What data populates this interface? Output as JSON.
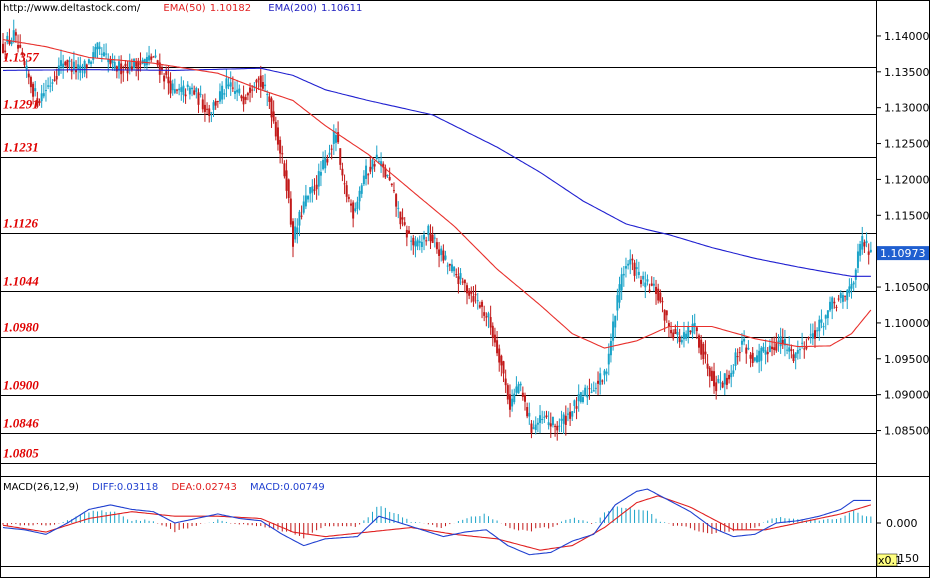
{
  "header": {
    "url": "http://www.deltastock.com/",
    "ema50_label": "EMA(50)",
    "ema50_value": "1.10182",
    "ema200_label": "EMA(200)",
    "ema200_value": "1.10611"
  },
  "macd_header": {
    "label": "MACD(26,12,9)",
    "diff": "DIFF:0.03118",
    "dea": "DEA:0.02743",
    "macd": "MACD:0.00749"
  },
  "colors": {
    "up": "#1aa3c8",
    "down": "#c21a1a",
    "ema50": "#e8302c",
    "ema200": "#1f1fd0",
    "level_text": "#e00000",
    "diff": "#2040d0",
    "dea": "#e02020",
    "price_tag_bg": "#1f5fd0"
  },
  "chart_data": [
    {
      "type": "candlestick",
      "ylim": [
        1.0795,
        1.1425
      ],
      "yticks": [
        "1.14000",
        "1.13500",
        "1.13000",
        "1.12500",
        "1.12000",
        "1.11500",
        "1.11000",
        "1.10500",
        "1.10000",
        "1.09500",
        "1.09000",
        "1.08500"
      ],
      "ytick_values": [
        1.14,
        1.135,
        1.13,
        1.125,
        1.12,
        1.115,
        1.11,
        1.105,
        1.1,
        1.095,
        1.09,
        1.085
      ],
      "current_price": "1.10973",
      "current_price_value": 1.10973,
      "levels": [
        {
          "label": "1.1357",
          "value": 1.1357
        },
        {
          "label": "1.1291",
          "value": 1.1291
        },
        {
          "label": "1.1231",
          "value": 1.1231
        },
        {
          "label": "1.1126",
          "value": 1.1126
        },
        {
          "label": "1.1044",
          "value": 1.1044
        },
        {
          "label": "1.0980",
          "value": 1.098
        },
        {
          "label": "1.0900",
          "value": 1.09
        },
        {
          "label": "1.0846",
          "value": 1.0846
        },
        {
          "label": "1.0805",
          "value": 1.0805
        }
      ],
      "price_anchors": [
        [
          0,
          1.1385
        ],
        [
          5,
          1.14
        ],
        [
          10,
          1.1355
        ],
        [
          16,
          1.131
        ],
        [
          22,
          1.1335
        ],
        [
          28,
          1.1365
        ],
        [
          36,
          1.135
        ],
        [
          44,
          1.138
        ],
        [
          52,
          1.1355
        ],
        [
          62,
          1.136
        ],
        [
          70,
          1.137
        ],
        [
          80,
          1.132
        ],
        [
          88,
          1.1325
        ],
        [
          96,
          1.1295
        ],
        [
          104,
          1.133
        ],
        [
          112,
          1.1315
        ],
        [
          118,
          1.1345
        ],
        [
          124,
          1.131
        ],
        [
          128,
          1.1255
        ],
        [
          132,
          1.1195
        ],
        [
          135,
          1.1115
        ],
        [
          140,
          1.1165
        ],
        [
          146,
          1.1195
        ],
        [
          150,
          1.1225
        ],
        [
          155,
          1.1265
        ],
        [
          158,
          1.1195
        ],
        [
          163,
          1.1155
        ],
        [
          168,
          1.1205
        ],
        [
          174,
          1.123
        ],
        [
          180,
          1.1195
        ],
        [
          186,
          1.1135
        ],
        [
          192,
          1.1105
        ],
        [
          198,
          1.1125
        ],
        [
          206,
          1.1085
        ],
        [
          214,
          1.1055
        ],
        [
          220,
          1.1035
        ],
        [
          226,
          1.1005
        ],
        [
          231,
          1.0955
        ],
        [
          236,
          1.0885
        ],
        [
          240,
          1.0915
        ],
        [
          246,
          1.0855
        ],
        [
          252,
          1.0865
        ],
        [
          258,
          1.0855
        ],
        [
          264,
          1.0875
        ],
        [
          272,
          1.0905
        ],
        [
          280,
          1.0925
        ],
        [
          284,
          1.0995
        ],
        [
          288,
          1.107
        ],
        [
          292,
          1.1085
        ],
        [
          298,
          1.1055
        ],
        [
          304,
          1.1045
        ],
        [
          310,
          1.0995
        ],
        [
          316,
          1.0975
        ],
        [
          322,
          1.0995
        ],
        [
          326,
          1.0955
        ],
        [
          332,
          1.0915
        ],
        [
          338,
          1.0925
        ],
        [
          344,
          1.0975
        ],
        [
          350,
          1.0945
        ],
        [
          356,
          1.0965
        ],
        [
          362,
          1.0975
        ],
        [
          368,
          1.0955
        ],
        [
          374,
          1.0975
        ],
        [
          380,
          1.0995
        ],
        [
          386,
          1.1025
        ],
        [
          392,
          1.1035
        ],
        [
          396,
          1.1065
        ],
        [
          400,
          1.1115
        ],
        [
          404,
          1.1095
        ]
      ],
      "ema50_anchors": [
        [
          0,
          1.1395
        ],
        [
          20,
          1.1385
        ],
        [
          40,
          1.137
        ],
        [
          70,
          1.1362
        ],
        [
          100,
          1.1348
        ],
        [
          120,
          1.1325
        ],
        [
          135,
          1.131
        ],
        [
          150,
          1.1275
        ],
        [
          170,
          1.1235
        ],
        [
          190,
          1.1185
        ],
        [
          210,
          1.1135
        ],
        [
          230,
          1.1075
        ],
        [
          250,
          1.1025
        ],
        [
          265,
          1.0985
        ],
        [
          280,
          1.0965
        ],
        [
          295,
          1.0975
        ],
        [
          310,
          1.0995
        ],
        [
          330,
          1.0995
        ],
        [
          350,
          1.0978
        ],
        [
          370,
          1.0967
        ],
        [
          385,
          1.0968
        ],
        [
          395,
          1.0985
        ],
        [
          404,
          1.1018
        ]
      ],
      "ema200_anchors": [
        [
          0,
          1.1352
        ],
        [
          40,
          1.1353
        ],
        [
          80,
          1.1352
        ],
        [
          120,
          1.1355
        ],
        [
          135,
          1.1345
        ],
        [
          150,
          1.1325
        ],
        [
          170,
          1.131
        ],
        [
          200,
          1.129
        ],
        [
          230,
          1.1245
        ],
        [
          250,
          1.121
        ],
        [
          270,
          1.117
        ],
        [
          290,
          1.1138
        ],
        [
          300,
          1.113
        ],
        [
          310,
          1.1123
        ],
        [
          330,
          1.1105
        ],
        [
          350,
          1.109
        ],
        [
          370,
          1.1078
        ],
        [
          385,
          1.107
        ],
        [
          395,
          1.1065
        ],
        [
          404,
          1.1065
        ]
      ]
    },
    {
      "type": "macd",
      "ylim": [
        -0.19,
        0.19
      ],
      "yticks": [
        "0.000"
      ],
      "ytick_values": [
        0
      ],
      "corner_label": "x0.1",
      "bottom_tick": "150",
      "diff_anchors": [
        [
          0,
          -0.02
        ],
        [
          10,
          -0.03
        ],
        [
          20,
          -0.05
        ],
        [
          30,
          0.0
        ],
        [
          40,
          0.06
        ],
        [
          50,
          0.08
        ],
        [
          60,
          0.06
        ],
        [
          70,
          0.05
        ],
        [
          80,
          0.0
        ],
        [
          90,
          0.02
        ],
        [
          100,
          0.04
        ],
        [
          110,
          0.02
        ],
        [
          120,
          0.01
        ],
        [
          130,
          -0.05
        ],
        [
          140,
          -0.1
        ],
        [
          150,
          -0.07
        ],
        [
          165,
          -0.06
        ],
        [
          175,
          0.03
        ],
        [
          185,
          0.0
        ],
        [
          195,
          -0.03
        ],
        [
          205,
          -0.06
        ],
        [
          215,
          -0.04
        ],
        [
          225,
          -0.03
        ],
        [
          235,
          -0.1
        ],
        [
          245,
          -0.14
        ],
        [
          255,
          -0.13
        ],
        [
          265,
          -0.08
        ],
        [
          275,
          -0.05
        ],
        [
          285,
          0.08
        ],
        [
          295,
          0.14
        ],
        [
          300,
          0.15
        ],
        [
          310,
          0.1
        ],
        [
          320,
          0.05
        ],
        [
          330,
          -0.02
        ],
        [
          340,
          -0.06
        ],
        [
          350,
          -0.05
        ],
        [
          360,
          0.0
        ],
        [
          370,
          0.01
        ],
        [
          380,
          0.03
        ],
        [
          390,
          0.06
        ],
        [
          396,
          0.1
        ],
        [
          404,
          0.1
        ]
      ],
      "dea_anchors": [
        [
          0,
          -0.01
        ],
        [
          20,
          -0.04
        ],
        [
          40,
          0.02
        ],
        [
          60,
          0.05
        ],
        [
          80,
          0.03
        ],
        [
          100,
          0.03
        ],
        [
          120,
          0.02
        ],
        [
          135,
          -0.04
        ],
        [
          150,
          -0.06
        ],
        [
          170,
          -0.04
        ],
        [
          190,
          -0.02
        ],
        [
          210,
          -0.05
        ],
        [
          230,
          -0.07
        ],
        [
          250,
          -0.12
        ],
        [
          265,
          -0.1
        ],
        [
          280,
          -0.02
        ],
        [
          295,
          0.09
        ],
        [
          305,
          0.12
        ],
        [
          320,
          0.07
        ],
        [
          340,
          -0.03
        ],
        [
          355,
          -0.03
        ],
        [
          370,
          0.0
        ],
        [
          390,
          0.04
        ],
        [
          404,
          0.08
        ]
      ]
    }
  ]
}
